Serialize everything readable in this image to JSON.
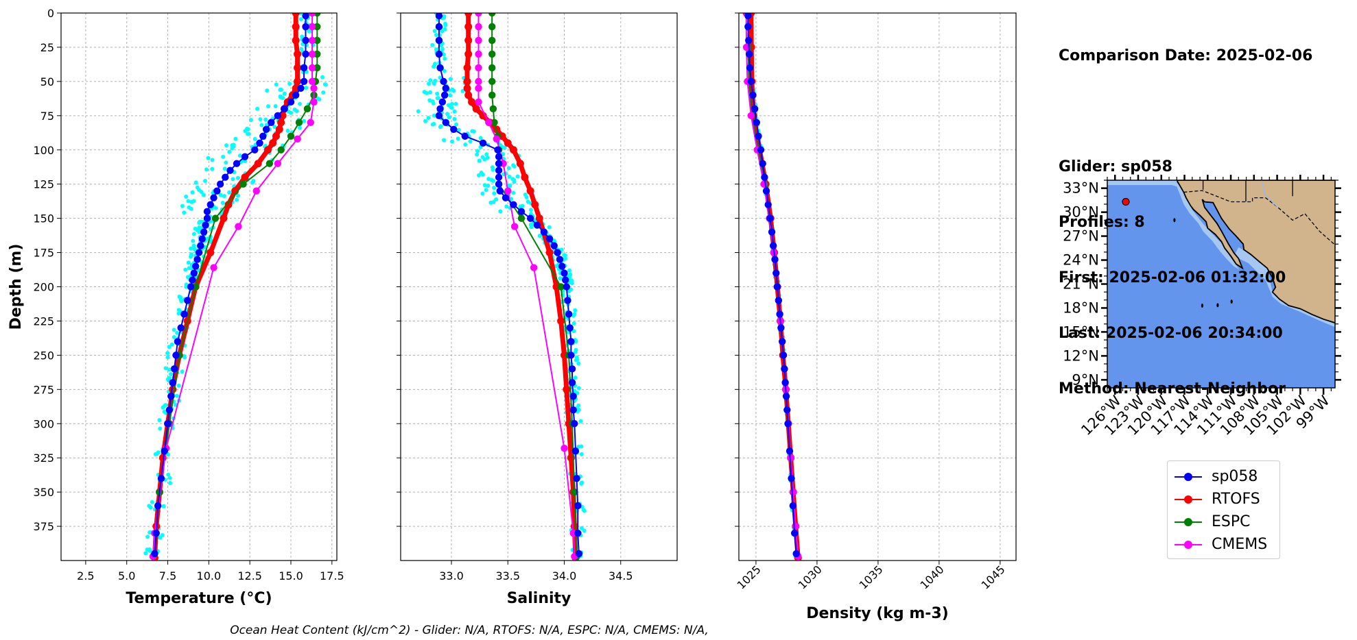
{
  "info": {
    "comparison_date": "Comparison Date: 2025-02-06",
    "glider": "Glider: sp058",
    "profiles": "Profiles: 8",
    "first": "First: 2025-02-06 01:32:00",
    "last": "Last: 2025-02-06 20:34:00",
    "method": "Method: Nearest-Neighbor"
  },
  "footer": "Ocean Heat Content (kJ/cm^2) - Glider: N/A,  RTOFS: N/A,  ESPC: N/A,  CMEMS: N/A,",
  "legend": [
    {
      "name": "sp058",
      "color": "#0000ff"
    },
    {
      "name": "RTOFS",
      "color": "#ff0000"
    },
    {
      "name": "ESPC",
      "color": "#008000"
    },
    {
      "name": "CMEMS",
      "color": "#ff00ff"
    }
  ],
  "colors": {
    "glider": "#0000ff",
    "rtofs": "#ff0000",
    "espc": "#008000",
    "cmems": "#ff00ff",
    "raw": "#00ffff",
    "ocean": "#6495ed",
    "land": "#d2b48c",
    "shelf": "#a6c8f0"
  },
  "map": {
    "lat_labels": [
      "33°N",
      "30°N",
      "27°N",
      "24°N",
      "21°N",
      "18°N",
      "15°N",
      "12°N",
      "9°N"
    ],
    "lon_labels": [
      "126°W",
      "123°W",
      "120°W",
      "117°W",
      "114°W",
      "111°W",
      "108°W",
      "105°W",
      "102°W",
      "99°W"
    ],
    "glider_location": {
      "lon": -124.6,
      "lat": 31.3
    }
  },
  "chart_data": [
    {
      "type": "line",
      "title": "",
      "xlabel": "Temperature (°C)",
      "ylabel": "Depth (m)",
      "xlim": [
        1,
        17.8
      ],
      "ylim": [
        400,
        0
      ],
      "yticks": [
        0,
        25,
        50,
        75,
        100,
        125,
        150,
        175,
        200,
        225,
        250,
        275,
        300,
        325,
        350,
        375
      ],
      "xticks": [
        "2.5",
        "5.0",
        "7.5",
        "10.0",
        "12.5",
        "15.0",
        "17.5"
      ],
      "grid": true,
      "series": [
        {
          "name": "sp058",
          "color": "#0000ff",
          "depth": [
            2,
            10,
            20,
            30,
            40,
            50,
            55,
            60,
            65,
            70,
            75,
            80,
            85,
            90,
            95,
            100,
            105,
            110,
            115,
            120,
            125,
            130,
            135,
            140,
            145,
            150,
            155,
            160,
            165,
            170,
            175,
            180,
            185,
            190,
            195,
            200,
            210,
            220,
            230,
            240,
            250,
            260,
            270,
            280,
            290,
            300,
            320,
            340,
            360,
            380,
            395
          ],
          "values": [
            15.9,
            15.9,
            15.9,
            15.9,
            15.8,
            15.8,
            15.6,
            15.3,
            15.0,
            14.6,
            14.2,
            13.8,
            13.5,
            13.3,
            13.1,
            12.8,
            12.2,
            11.7,
            11.3,
            11.0,
            10.7,
            10.5,
            10.3,
            10.1,
            9.9,
            9.9,
            9.8,
            9.7,
            9.6,
            9.5,
            9.4,
            9.3,
            9.2,
            9.1,
            9.0,
            8.9,
            8.7,
            8.5,
            8.3,
            8.1,
            8.0,
            7.9,
            7.8,
            7.7,
            7.6,
            7.5,
            7.3,
            7.1,
            6.9,
            6.8,
            6.7
          ]
        },
        {
          "name": "RTOFS",
          "color": "#ff0000",
          "depth": [
            0,
            10,
            20,
            30,
            40,
            50,
            55,
            60,
            65,
            70,
            75,
            80,
            85,
            90,
            95,
            100,
            110,
            120,
            130,
            140,
            150,
            175,
            200,
            225,
            250,
            275,
            300,
            325,
            350,
            375,
            398
          ],
          "values": [
            15.3,
            15.3,
            15.3,
            15.4,
            15.4,
            15.4,
            15.3,
            15.1,
            14.8,
            14.6,
            14.5,
            14.4,
            14.3,
            14.1,
            13.9,
            13.6,
            13.0,
            12.2,
            11.6,
            11.2,
            10.9,
            10.1,
            9.2,
            8.7,
            8.2,
            7.8,
            7.5,
            7.2,
            7.0,
            6.8,
            6.7
          ]
        },
        {
          "name": "ESPC",
          "color": "#008000",
          "depth": [
            0,
            10,
            20,
            30,
            40,
            50,
            60,
            70,
            80,
            90,
            100,
            110,
            125,
            150,
            200,
            250,
            300,
            350,
            397
          ],
          "values": [
            16.6,
            16.6,
            16.6,
            16.6,
            16.6,
            16.5,
            16.4,
            16.0,
            15.5,
            15.0,
            14.4,
            13.7,
            12.1,
            10.4,
            9.2,
            8.2,
            7.6,
            7.0,
            6.6
          ]
        },
        {
          "name": "CMEMS",
          "color": "#ff00ff",
          "depth": [
            0,
            10,
            20,
            30,
            40,
            50,
            55,
            65,
            80,
            92,
            110,
            130,
            156,
            186,
            318,
            380,
            397
          ],
          "values": [
            16.3,
            16.3,
            16.3,
            16.3,
            16.3,
            16.3,
            16.4,
            16.4,
            16.2,
            15.4,
            14.2,
            12.9,
            11.8,
            10.3,
            7.4,
            6.7,
            6.6
          ]
        }
      ]
    },
    {
      "type": "line",
      "title": "",
      "xlabel": "Salinity",
      "ylabel": "",
      "xlim": [
        32.55,
        35.0
      ],
      "ylim": [
        400,
        0
      ],
      "xticks": [
        "33.0",
        "33.5",
        "34.0",
        "34.5"
      ],
      "grid": true,
      "series": [
        {
          "name": "sp058",
          "color": "#0000ff",
          "depth": [
            2,
            10,
            20,
            30,
            40,
            50,
            55,
            60,
            65,
            70,
            75,
            80,
            85,
            90,
            95,
            100,
            105,
            110,
            115,
            120,
            125,
            130,
            135,
            140,
            145,
            150,
            155,
            160,
            165,
            170,
            175,
            180,
            185,
            190,
            195,
            200,
            210,
            220,
            230,
            240,
            250,
            260,
            270,
            280,
            290,
            300,
            320,
            340,
            360,
            380,
            395
          ],
          "values": [
            32.89,
            32.89,
            32.89,
            32.89,
            32.9,
            32.93,
            32.95,
            32.94,
            32.92,
            32.9,
            32.89,
            32.95,
            33.02,
            33.12,
            33.28,
            33.41,
            33.42,
            33.42,
            33.42,
            33.42,
            33.42,
            33.43,
            33.48,
            33.55,
            33.62,
            33.7,
            33.76,
            33.82,
            33.87,
            33.91,
            33.94,
            33.96,
            33.98,
            34.0,
            34.01,
            34.02,
            34.03,
            34.04,
            34.05,
            34.06,
            34.06,
            34.07,
            34.07,
            34.08,
            34.08,
            34.09,
            34.1,
            34.11,
            34.12,
            34.12,
            34.13
          ]
        },
        {
          "name": "RTOFS",
          "color": "#ff0000",
          "depth": [
            0,
            10,
            20,
            30,
            40,
            50,
            55,
            60,
            65,
            70,
            75,
            80,
            85,
            90,
            95,
            100,
            110,
            120,
            130,
            140,
            150,
            175,
            200,
            225,
            250,
            275,
            300,
            325,
            350,
            375,
            398
          ],
          "values": [
            33.15,
            33.15,
            33.15,
            33.15,
            33.14,
            33.14,
            33.14,
            33.15,
            33.18,
            33.22,
            33.28,
            33.34,
            33.4,
            33.45,
            33.5,
            33.55,
            33.61,
            33.65,
            33.7,
            33.74,
            33.78,
            33.87,
            33.93,
            33.97,
            34.0,
            34.02,
            34.04,
            34.06,
            34.08,
            34.09,
            34.1
          ]
        },
        {
          "name": "ESPC",
          "color": "#008000",
          "depth": [
            0,
            10,
            20,
            30,
            40,
            50,
            60,
            70,
            80,
            90,
            100,
            110,
            125,
            150,
            200,
            250,
            300,
            350,
            397
          ],
          "values": [
            33.36,
            33.36,
            33.36,
            33.36,
            33.36,
            33.36,
            33.36,
            33.37,
            33.38,
            33.41,
            33.42,
            33.42,
            33.42,
            33.62,
            33.97,
            34.04,
            34.07,
            34.09,
            34.11
          ]
        },
        {
          "name": "CMEMS",
          "color": "#ff00ff",
          "depth": [
            0,
            10,
            20,
            30,
            40,
            50,
            55,
            65,
            80,
            92,
            110,
            130,
            156,
            186,
            318,
            380,
            397
          ],
          "values": [
            33.24,
            33.24,
            33.24,
            33.24,
            33.24,
            33.24,
            33.24,
            33.24,
            33.33,
            33.4,
            33.46,
            33.5,
            33.56,
            33.73,
            34.0,
            34.08,
            34.09
          ]
        }
      ]
    },
    {
      "type": "line",
      "title": "",
      "xlabel": "Density (kg m-3)",
      "ylabel": "",
      "xlim": [
        1023.6,
        1046.3
      ],
      "ylim": [
        400,
        0
      ],
      "xticks": [
        "1025",
        "1030",
        "1035",
        "1040",
        "1045"
      ],
      "grid": true,
      "series": [
        {
          "name": "sp058",
          "color": "#0000ff",
          "depth": [
            2,
            10,
            20,
            30,
            40,
            50,
            60,
            70,
            80,
            90,
            100,
            110,
            120,
            130,
            140,
            150,
            160,
            170,
            180,
            190,
            200,
            210,
            220,
            230,
            240,
            250,
            260,
            270,
            280,
            290,
            300,
            320,
            340,
            360,
            380,
            395
          ],
          "values": [
            1024.35,
            1024.35,
            1024.4,
            1024.45,
            1024.5,
            1024.6,
            1024.75,
            1024.9,
            1025.05,
            1025.2,
            1025.4,
            1025.55,
            1025.7,
            1025.85,
            1026.0,
            1026.15,
            1026.3,
            1026.42,
            1026.55,
            1026.65,
            1026.75,
            1026.85,
            1026.95,
            1027.05,
            1027.15,
            1027.25,
            1027.33,
            1027.4,
            1027.48,
            1027.55,
            1027.62,
            1027.76,
            1027.9,
            1028.03,
            1028.16,
            1028.3
          ]
        },
        {
          "name": "RTOFS",
          "color": "#ff0000",
          "depth": [
            0,
            25,
            50,
            75,
            100,
            125,
            150,
            175,
            200,
            225,
            250,
            275,
            300,
            325,
            350,
            375,
            398
          ],
          "values": [
            1024.6,
            1024.62,
            1024.66,
            1024.8,
            1025.3,
            1025.8,
            1026.2,
            1026.5,
            1026.75,
            1027.0,
            1027.2,
            1027.45,
            1027.65,
            1027.85,
            1028.05,
            1028.25,
            1028.45
          ]
        },
        {
          "name": "ESPC",
          "color": "#008000",
          "depth": [
            0,
            25,
            50,
            75,
            100,
            125,
            150,
            175,
            200,
            225,
            250,
            275,
            300,
            325,
            350,
            375,
            397
          ],
          "values": [
            1024.35,
            1024.37,
            1024.42,
            1024.7,
            1025.2,
            1025.75,
            1026.15,
            1026.45,
            1026.75,
            1027.0,
            1027.25,
            1027.45,
            1027.65,
            1027.85,
            1028.05,
            1028.25,
            1028.45
          ]
        },
        {
          "name": "CMEMS",
          "color": "#ff00ff",
          "depth": [
            0,
            25,
            50,
            75,
            100,
            125,
            150,
            175,
            200,
            225,
            250,
            275,
            300,
            325,
            350,
            375,
            397
          ],
          "values": [
            1024.2,
            1024.22,
            1024.3,
            1024.6,
            1025.1,
            1025.65,
            1026.1,
            1026.45,
            1026.75,
            1027.0,
            1027.25,
            1027.45,
            1027.65,
            1027.85,
            1028.05,
            1028.25,
            1028.45
          ]
        }
      ]
    }
  ]
}
